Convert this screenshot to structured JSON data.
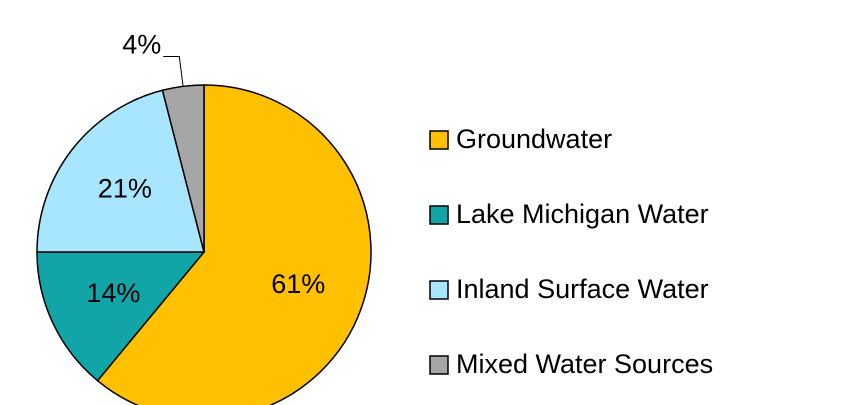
{
  "chart_data": {
    "type": "pie",
    "categories": [
      "Groundwater",
      "Lake Michigan Water",
      "Inland Surface Water",
      "Mixed Water Sources"
    ],
    "values": [
      61,
      14,
      21,
      4
    ],
    "value_labels": [
      "61%",
      "14%",
      "21%",
      "4%"
    ],
    "colors": [
      "#FFC000",
      "#12A5A8",
      "#A8E6FF",
      "#A6A6A6"
    ],
    "legend": "right"
  }
}
